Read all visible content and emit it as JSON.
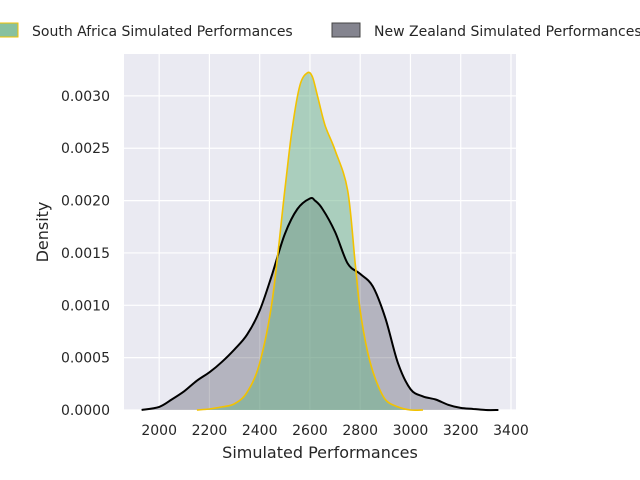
{
  "chart_data": {
    "type": "area",
    "title": "",
    "xlabel": "Simulated Performances",
    "ylabel": "Density",
    "xlim": [
      1860,
      3420
    ],
    "ylim": [
      0,
      0.0034
    ],
    "x_ticks": [
      2000,
      2200,
      2400,
      2600,
      2800,
      3000,
      3200,
      3400
    ],
    "y_ticks": [
      0.0,
      0.0005,
      0.001,
      0.0015,
      0.002,
      0.0025,
      0.003
    ],
    "y_tick_labels": [
      "0.0000",
      "0.0005",
      "0.0010",
      "0.0015",
      "0.0020",
      "0.0025",
      "0.0030"
    ],
    "grid": true,
    "legend_position": "top",
    "series": [
      {
        "name": "New Zealand Simulated Performances",
        "fill_color": "#505060",
        "line_color": "#000000",
        "x": [
          1930,
          2000,
          2050,
          2100,
          2150,
          2200,
          2250,
          2300,
          2350,
          2400,
          2450,
          2500,
          2550,
          2600,
          2620,
          2650,
          2700,
          2750,
          2800,
          2850,
          2900,
          2950,
          3000,
          3050,
          3100,
          3150,
          3200,
          3250,
          3300,
          3350
        ],
        "y": [
          0.0,
          3e-05,
          0.0001,
          0.00018,
          0.00028,
          0.00036,
          0.00046,
          0.00058,
          0.00072,
          0.00095,
          0.0013,
          0.00168,
          0.00192,
          0.00202,
          0.002,
          0.00192,
          0.0017,
          0.0014,
          0.0013,
          0.00118,
          0.00088,
          0.00045,
          0.0002,
          0.00013,
          0.0001,
          5e-05,
          2e-05,
          1e-05,
          0.0,
          0.0
        ]
      },
      {
        "name": "South Africa Simulated Performances",
        "fill_color": "#6ab187",
        "line_color": "#f2c200",
        "x": [
          2150,
          2200,
          2250,
          2300,
          2350,
          2400,
          2450,
          2500,
          2530,
          2560,
          2590,
          2610,
          2630,
          2660,
          2700,
          2750,
          2780,
          2800,
          2830,
          2860,
          2900,
          2950,
          3000,
          3050
        ],
        "y": [
          0.0,
          1e-05,
          3e-05,
          6e-05,
          0.00017,
          0.00045,
          0.00105,
          0.0021,
          0.0027,
          0.0031,
          0.00322,
          0.00318,
          0.003,
          0.00272,
          0.00248,
          0.0021,
          0.0014,
          0.00095,
          0.00055,
          0.0003,
          0.0001,
          3e-05,
          0.0,
          0.0
        ]
      }
    ]
  }
}
